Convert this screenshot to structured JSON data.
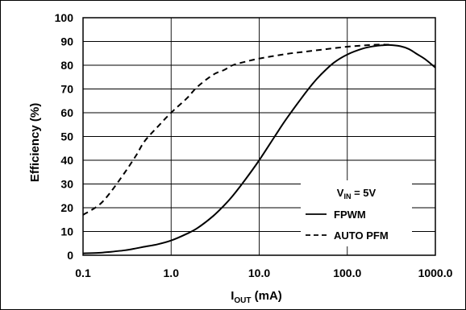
{
  "chart_data": {
    "type": "line",
    "x_scale": "log",
    "xlim": [
      0.1,
      1000
    ],
    "ylim": [
      0,
      100
    ],
    "grid": true,
    "title": "",
    "xlabel": {
      "main": "I",
      "sub": "OUT",
      "unit": " (mA)"
    },
    "ylabel": "Efficiency (%)",
    "x_ticks": [
      {
        "value": 0.1,
        "label": "0.1"
      },
      {
        "value": 1,
        "label": "1.0"
      },
      {
        "value": 10,
        "label": "10.0"
      },
      {
        "value": 100,
        "label": "100.0"
      },
      {
        "value": 1000,
        "label": "1000.0"
      }
    ],
    "y_ticks": [
      {
        "value": 0,
        "label": "0"
      },
      {
        "value": 10,
        "label": "10"
      },
      {
        "value": 20,
        "label": "20"
      },
      {
        "value": 30,
        "label": "30"
      },
      {
        "value": 40,
        "label": "40"
      },
      {
        "value": 50,
        "label": "50"
      },
      {
        "value": 60,
        "label": "60"
      },
      {
        "value": 70,
        "label": "70"
      },
      {
        "value": 80,
        "label": "80"
      },
      {
        "value": 90,
        "label": "90"
      },
      {
        "value": 100,
        "label": "100"
      }
    ],
    "legend": {
      "placement": "bottom-right",
      "condition": {
        "main": "V",
        "sub": "IN",
        "rest": " = 5V"
      }
    },
    "series": [
      {
        "name": "FPWM",
        "style": "solid",
        "color": "#000000",
        "x": [
          0.1,
          0.15,
          0.2,
          0.3,
          0.4,
          0.5,
          0.7,
          1.0,
          1.5,
          2.0,
          3.0,
          4.0,
          5.0,
          7.0,
          10.0,
          15.0,
          20.0,
          30.0,
          40.0,
          50.0,
          70.0,
          100.0,
          150.0,
          200.0,
          250.0,
          300.0,
          400.0,
          500.0,
          600.0,
          700.0,
          800.0,
          1000.0
        ],
        "y": [
          0.8,
          1.0,
          1.4,
          2.1,
          2.9,
          3.6,
          4.6,
          6.2,
          9.0,
          11.5,
          16.5,
          21.0,
          25.0,
          32.0,
          40.0,
          50.0,
          57.0,
          66.0,
          72.0,
          76.0,
          81.0,
          84.5,
          87.0,
          88.0,
          88.4,
          88.5,
          88.0,
          86.8,
          85.0,
          83.5,
          82.0,
          79.0
        ]
      },
      {
        "name": "AUTO PFM",
        "style": "dashed",
        "color": "#000000",
        "x": [
          0.1,
          0.15,
          0.2,
          0.3,
          0.4,
          0.5,
          0.7,
          1.0,
          1.5,
          2.0,
          3.0,
          4.0,
          5.0,
          7.0,
          10.0,
          20.0,
          30.0,
          50.0,
          100.0,
          150.0,
          200.0,
          250.0,
          300.0
        ],
        "y": [
          17.0,
          21.0,
          26.0,
          35.0,
          42.0,
          48.0,
          54.0,
          60.0,
          66.0,
          71.0,
          76.0,
          78.0,
          80.0,
          81.5,
          82.8,
          84.7,
          85.5,
          86.5,
          87.8,
          88.3,
          88.6,
          88.7,
          88.6
        ]
      }
    ]
  }
}
